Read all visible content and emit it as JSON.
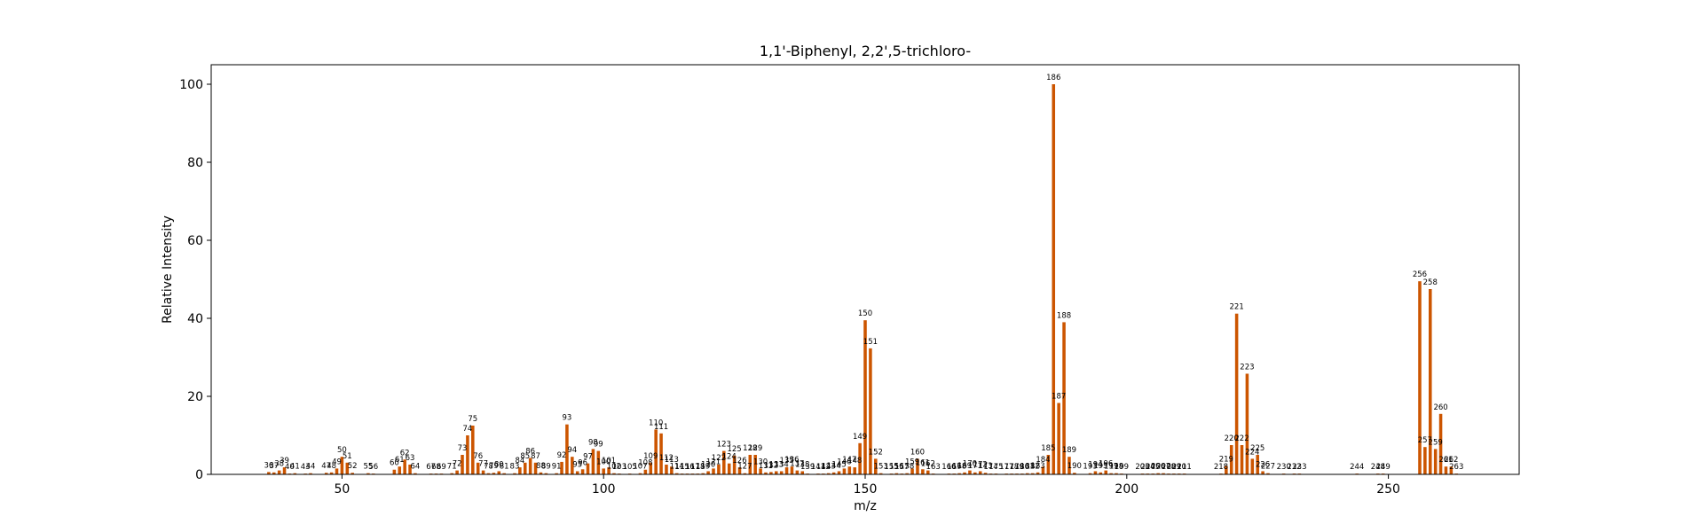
{
  "chart_data": {
    "type": "bar",
    "title": "1,1'-Biphenyl, 2,2',5-trichloro-",
    "xlabel": "m/z",
    "ylabel": "Relative Intensity",
    "xlim": [
      25,
      275
    ],
    "ylim": [
      0,
      105
    ],
    "xticks": [
      50,
      100,
      150,
      200,
      250
    ],
    "yticks": [
      0,
      20,
      40,
      60,
      80,
      100
    ],
    "grid": false,
    "bar_color": "#cc5500",
    "peaks": [
      {
        "mz": 36,
        "intensity": 0.6,
        "label": "36"
      },
      {
        "mz": 37,
        "intensity": 0.5,
        "label": "37"
      },
      {
        "mz": 38,
        "intensity": 1.0,
        "label": "38"
      },
      {
        "mz": 39,
        "intensity": 1.8,
        "label": "39"
      },
      {
        "mz": 40,
        "intensity": 0.2,
        "label": "40"
      },
      {
        "mz": 41,
        "intensity": 0.3,
        "label": "41"
      },
      {
        "mz": 43,
        "intensity": 0.2,
        "label": "43"
      },
      {
        "mz": 44,
        "intensity": 0.3,
        "label": "44"
      },
      {
        "mz": 47,
        "intensity": 0.4,
        "label": "47"
      },
      {
        "mz": 48,
        "intensity": 0.5,
        "label": "48"
      },
      {
        "mz": 49,
        "intensity": 1.5,
        "label": "49"
      },
      {
        "mz": 50,
        "intensity": 4.5,
        "label": "50"
      },
      {
        "mz": 51,
        "intensity": 3.0,
        "label": "51"
      },
      {
        "mz": 52,
        "intensity": 0.4,
        "label": "52"
      },
      {
        "mz": 55,
        "intensity": 0.3,
        "label": "55"
      },
      {
        "mz": 56,
        "intensity": 0.2,
        "label": "56"
      },
      {
        "mz": 60,
        "intensity": 1.2,
        "label": "60"
      },
      {
        "mz": 61,
        "intensity": 2.0,
        "label": "61"
      },
      {
        "mz": 62,
        "intensity": 3.8,
        "label": "62"
      },
      {
        "mz": 63,
        "intensity": 2.5,
        "label": "63"
      },
      {
        "mz": 64,
        "intensity": 0.3,
        "label": "64"
      },
      {
        "mz": 67,
        "intensity": 0.2,
        "label": "67"
      },
      {
        "mz": 68,
        "intensity": 0.2,
        "label": "68"
      },
      {
        "mz": 69,
        "intensity": 0.2,
        "label": "69"
      },
      {
        "mz": 71,
        "intensity": 0.3,
        "label": "71"
      },
      {
        "mz": 72,
        "intensity": 1.0,
        "label": "72"
      },
      {
        "mz": 73,
        "intensity": 5.0,
        "label": "73"
      },
      {
        "mz": 74,
        "intensity": 10.0,
        "label": "74"
      },
      {
        "mz": 75,
        "intensity": 12.5,
        "label": "75"
      },
      {
        "mz": 76,
        "intensity": 3.0,
        "label": "76"
      },
      {
        "mz": 77,
        "intensity": 1.0,
        "label": "77"
      },
      {
        "mz": 78,
        "intensity": 0.3,
        "label": "78"
      },
      {
        "mz": 79,
        "intensity": 0.4,
        "label": "79"
      },
      {
        "mz": 80,
        "intensity": 0.8,
        "label": "80"
      },
      {
        "mz": 81,
        "intensity": 0.3,
        "label": "81"
      },
      {
        "mz": 83,
        "intensity": 0.3,
        "label": "83"
      },
      {
        "mz": 84,
        "intensity": 1.8,
        "label": "84"
      },
      {
        "mz": 85,
        "intensity": 3.0,
        "label": "85"
      },
      {
        "mz": 86,
        "intensity": 4.2,
        "label": "86"
      },
      {
        "mz": 87,
        "intensity": 3.0,
        "label": "87"
      },
      {
        "mz": 88,
        "intensity": 0.5,
        "label": "88"
      },
      {
        "mz": 89,
        "intensity": 0.3,
        "label": "89"
      },
      {
        "mz": 91,
        "intensity": 0.3,
        "label": "91"
      },
      {
        "mz": 92,
        "intensity": 3.2,
        "label": "92"
      },
      {
        "mz": 93,
        "intensity": 12.8,
        "label": "93"
      },
      {
        "mz": 94,
        "intensity": 4.5,
        "label": "94"
      },
      {
        "mz": 95,
        "intensity": 0.8,
        "label": "95"
      },
      {
        "mz": 96,
        "intensity": 1.3,
        "label": "96"
      },
      {
        "mz": 97,
        "intensity": 2.8,
        "label": "97"
      },
      {
        "mz": 98,
        "intensity": 6.5,
        "label": "98"
      },
      {
        "mz": 99,
        "intensity": 6.0,
        "label": "99"
      },
      {
        "mz": 100,
        "intensity": 1.5,
        "label": "100"
      },
      {
        "mz": 101,
        "intensity": 1.8,
        "label": "101"
      },
      {
        "mz": 102,
        "intensity": 0.3,
        "label": "102"
      },
      {
        "mz": 103,
        "intensity": 0.2,
        "label": "103"
      },
      {
        "mz": 105,
        "intensity": 0.2,
        "label": "105"
      },
      {
        "mz": 107,
        "intensity": 0.3,
        "label": "107"
      },
      {
        "mz": 108,
        "intensity": 1.2,
        "label": "108"
      },
      {
        "mz": 109,
        "intensity": 3.0,
        "label": "109"
      },
      {
        "mz": 110,
        "intensity": 11.5,
        "label": "110"
      },
      {
        "mz": 111,
        "intensity": 10.5,
        "label": "111"
      },
      {
        "mz": 112,
        "intensity": 2.5,
        "label": "112"
      },
      {
        "mz": 113,
        "intensity": 2.0,
        "label": "113"
      },
      {
        "mz": 114,
        "intensity": 0.3,
        "label": "114"
      },
      {
        "mz": 115,
        "intensity": 0.2,
        "label": "115"
      },
      {
        "mz": 116,
        "intensity": 0.2,
        "label": "116"
      },
      {
        "mz": 117,
        "intensity": 0.2,
        "label": "117"
      },
      {
        "mz": 118,
        "intensity": 0.2,
        "label": "118"
      },
      {
        "mz": 119,
        "intensity": 0.3,
        "label": "119"
      },
      {
        "mz": 120,
        "intensity": 0.8,
        "label": "120"
      },
      {
        "mz": 121,
        "intensity": 1.5,
        "label": "121"
      },
      {
        "mz": 122,
        "intensity": 2.5,
        "label": "122"
      },
      {
        "mz": 123,
        "intensity": 6.0,
        "label": "123"
      },
      {
        "mz": 124,
        "intensity": 2.8,
        "label": "124"
      },
      {
        "mz": 125,
        "intensity": 4.8,
        "label": "125"
      },
      {
        "mz": 126,
        "intensity": 1.8,
        "label": "126"
      },
      {
        "mz": 127,
        "intensity": 0.3,
        "label": "127"
      },
      {
        "mz": 128,
        "intensity": 5.0,
        "label": "128"
      },
      {
        "mz": 129,
        "intensity": 5.0,
        "label": "129"
      },
      {
        "mz": 130,
        "intensity": 1.5,
        "label": "130"
      },
      {
        "mz": 131,
        "intensity": 0.5,
        "label": "131"
      },
      {
        "mz": 132,
        "intensity": 0.6,
        "label": "132"
      },
      {
        "mz": 133,
        "intensity": 0.8,
        "label": "133"
      },
      {
        "mz": 134,
        "intensity": 0.8,
        "label": "134"
      },
      {
        "mz": 135,
        "intensity": 1.8,
        "label": "135"
      },
      {
        "mz": 136,
        "intensity": 2.0,
        "label": "136"
      },
      {
        "mz": 137,
        "intensity": 1.0,
        "label": "137"
      },
      {
        "mz": 138,
        "intensity": 0.8,
        "label": "138"
      },
      {
        "mz": 139,
        "intensity": 0.2,
        "label": "139"
      },
      {
        "mz": 141,
        "intensity": 0.2,
        "label": "141"
      },
      {
        "mz": 142,
        "intensity": 0.2,
        "label": "142"
      },
      {
        "mz": 143,
        "intensity": 0.3,
        "label": "143"
      },
      {
        "mz": 144,
        "intensity": 0.5,
        "label": "144"
      },
      {
        "mz": 145,
        "intensity": 0.8,
        "label": "145"
      },
      {
        "mz": 146,
        "intensity": 1.5,
        "label": "146"
      },
      {
        "mz": 147,
        "intensity": 2.0,
        "label": "147"
      },
      {
        "mz": 148,
        "intensity": 1.8,
        "label": "148"
      },
      {
        "mz": 149,
        "intensity": 8.0,
        "label": "149"
      },
      {
        "mz": 150,
        "intensity": 39.5,
        "label": "150"
      },
      {
        "mz": 151,
        "intensity": 32.3,
        "label": "151"
      },
      {
        "mz": 152,
        "intensity": 4.0,
        "label": "152"
      },
      {
        "mz": 153,
        "intensity": 0.3,
        "label": "153"
      },
      {
        "mz": 155,
        "intensity": 0.2,
        "label": "155"
      },
      {
        "mz": 156,
        "intensity": 0.3,
        "label": "156"
      },
      {
        "mz": 157,
        "intensity": 0.2,
        "label": "157"
      },
      {
        "mz": 158,
        "intensity": 0.3,
        "label": "158"
      },
      {
        "mz": 159,
        "intensity": 1.5,
        "label": "159"
      },
      {
        "mz": 160,
        "intensity": 4.0,
        "label": "160"
      },
      {
        "mz": 161,
        "intensity": 1.3,
        "label": "161"
      },
      {
        "mz": 162,
        "intensity": 1.0,
        "label": "162"
      },
      {
        "mz": 163,
        "intensity": 0.2,
        "label": "163"
      },
      {
        "mz": 166,
        "intensity": 0.2,
        "label": "166"
      },
      {
        "mz": 167,
        "intensity": 0.2,
        "label": "167"
      },
      {
        "mz": 168,
        "intensity": 0.3,
        "label": "168"
      },
      {
        "mz": 169,
        "intensity": 0.5,
        "label": "169"
      },
      {
        "mz": 170,
        "intensity": 1.0,
        "label": "170"
      },
      {
        "mz": 171,
        "intensity": 0.5,
        "label": "171"
      },
      {
        "mz": 172,
        "intensity": 0.8,
        "label": "172"
      },
      {
        "mz": 173,
        "intensity": 0.4,
        "label": "173"
      },
      {
        "mz": 174,
        "intensity": 0.2,
        "label": "174"
      },
      {
        "mz": 175,
        "intensity": 0.2,
        "label": "175"
      },
      {
        "mz": 177,
        "intensity": 0.2,
        "label": "177"
      },
      {
        "mz": 178,
        "intensity": 0.2,
        "label": "178"
      },
      {
        "mz": 179,
        "intensity": 0.2,
        "label": "179"
      },
      {
        "mz": 180,
        "intensity": 0.2,
        "label": "180"
      },
      {
        "mz": 181,
        "intensity": 0.3,
        "label": "181"
      },
      {
        "mz": 182,
        "intensity": 0.3,
        "label": "182"
      },
      {
        "mz": 183,
        "intensity": 0.5,
        "label": "183"
      },
      {
        "mz": 184,
        "intensity": 2.0,
        "label": "184"
      },
      {
        "mz": 185,
        "intensity": 5.0,
        "label": "185"
      },
      {
        "mz": 186,
        "intensity": 100.0,
        "label": "186"
      },
      {
        "mz": 187,
        "intensity": 18.3,
        "label": "187"
      },
      {
        "mz": 188,
        "intensity": 39.0,
        "label": "188"
      },
      {
        "mz": 189,
        "intensity": 4.5,
        "label": "189"
      },
      {
        "mz": 190,
        "intensity": 0.4,
        "label": "190"
      },
      {
        "mz": 193,
        "intensity": 0.3,
        "label": "193"
      },
      {
        "mz": 194,
        "intensity": 0.8,
        "label": "194"
      },
      {
        "mz": 195,
        "intensity": 0.5,
        "label": "195"
      },
      {
        "mz": 196,
        "intensity": 1.0,
        "label": "196"
      },
      {
        "mz": 197,
        "intensity": 0.3,
        "label": "197"
      },
      {
        "mz": 198,
        "intensity": 0.3,
        "label": "198"
      },
      {
        "mz": 199,
        "intensity": 0.2,
        "label": "199"
      },
      {
        "mz": 203,
        "intensity": 0.2,
        "label": "203"
      },
      {
        "mz": 204,
        "intensity": 0.2,
        "label": "204"
      },
      {
        "mz": 205,
        "intensity": 0.2,
        "label": "205"
      },
      {
        "mz": 206,
        "intensity": 0.3,
        "label": "206"
      },
      {
        "mz": 207,
        "intensity": 0.3,
        "label": "207"
      },
      {
        "mz": 208,
        "intensity": 0.2,
        "label": "208"
      },
      {
        "mz": 209,
        "intensity": 0.2,
        "label": "209"
      },
      {
        "mz": 210,
        "intensity": 0.2,
        "label": "210"
      },
      {
        "mz": 211,
        "intensity": 0.2,
        "label": "211"
      },
      {
        "mz": 218,
        "intensity": 0.2,
        "label": "218"
      },
      {
        "mz": 219,
        "intensity": 2.2,
        "label": "219"
      },
      {
        "mz": 220,
        "intensity": 7.5,
        "label": "220"
      },
      {
        "mz": 221,
        "intensity": 41.2,
        "label": "221"
      },
      {
        "mz": 222,
        "intensity": 7.5,
        "label": "222"
      },
      {
        "mz": 223,
        "intensity": 25.8,
        "label": "223"
      },
      {
        "mz": 224,
        "intensity": 4.0,
        "label": "224"
      },
      {
        "mz": 225,
        "intensity": 5.0,
        "label": "225"
      },
      {
        "mz": 226,
        "intensity": 0.8,
        "label": "226"
      },
      {
        "mz": 227,
        "intensity": 0.3,
        "label": "227"
      },
      {
        "mz": 230,
        "intensity": 0.2,
        "label": "230"
      },
      {
        "mz": 232,
        "intensity": 0.2,
        "label": "232"
      },
      {
        "mz": 233,
        "intensity": 0.2,
        "label": "233"
      },
      {
        "mz": 244,
        "intensity": 0.2,
        "label": "244"
      },
      {
        "mz": 248,
        "intensity": 0.2,
        "label": "248"
      },
      {
        "mz": 249,
        "intensity": 0.2,
        "label": "249"
      },
      {
        "mz": 256,
        "intensity": 49.5,
        "label": "256"
      },
      {
        "mz": 257,
        "intensity": 7.0,
        "label": "257"
      },
      {
        "mz": 258,
        "intensity": 47.5,
        "label": "258"
      },
      {
        "mz": 259,
        "intensity": 6.5,
        "label": "259"
      },
      {
        "mz": 260,
        "intensity": 15.5,
        "label": "260"
      },
      {
        "mz": 261,
        "intensity": 2.0,
        "label": "261"
      },
      {
        "mz": 262,
        "intensity": 2.0,
        "label": "262"
      },
      {
        "mz": 263,
        "intensity": 0.2,
        "label": "263"
      }
    ]
  }
}
